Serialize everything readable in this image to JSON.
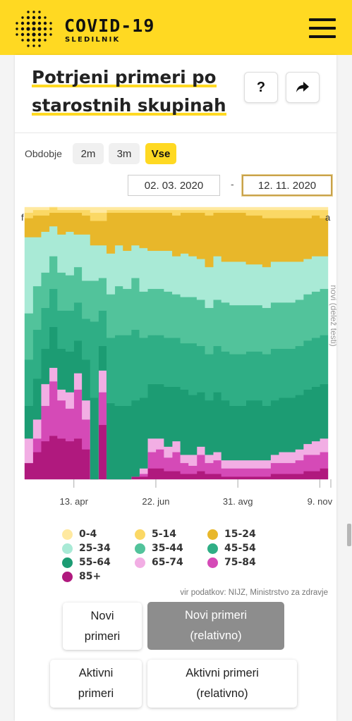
{
  "header": {
    "app_title": "COVID-19",
    "app_subtitle": "SLEDILNIK",
    "logo_icon": "dot-matrix-logo-icon",
    "menu_icon": "hamburger-menu-icon"
  },
  "card": {
    "title_line1": "Potrjeni primeri po",
    "title_line2": "starostnih skupinah",
    "help_label": "?",
    "share_icon": "share-arrow-icon"
  },
  "period": {
    "label": "Obdobje",
    "options": [
      "2m",
      "3m",
      "Vse"
    ],
    "selected": "Vse"
  },
  "date_range": {
    "from": "02. 03. 2020",
    "separator": "-",
    "to": "12. 11. 2020"
  },
  "chart_data": {
    "type": "area",
    "stacking": "percent",
    "y_axis_title_right": "novi (delež testi)",
    "left_cut_label": "f",
    "right_cut_label": "a",
    "ylim": [
      0,
      100
    ],
    "x_tick_labels": [
      "13. apr",
      "22. jun",
      "31. avg",
      "9. nov"
    ],
    "x_tick_weeks": [
      6,
      16,
      26,
      36
    ],
    "x": [
      "2020-03-02",
      "2020-03-09",
      "2020-03-16",
      "2020-03-23",
      "2020-03-30",
      "2020-04-06",
      "2020-04-13",
      "2020-04-20",
      "2020-04-27",
      "2020-05-04",
      "2020-05-11",
      "2020-05-18",
      "2020-05-25",
      "2020-06-01",
      "2020-06-08",
      "2020-06-15",
      "2020-06-22",
      "2020-06-29",
      "2020-07-06",
      "2020-07-13",
      "2020-07-20",
      "2020-07-27",
      "2020-08-03",
      "2020-08-10",
      "2020-08-17",
      "2020-08-24",
      "2020-08-31",
      "2020-09-07",
      "2020-09-14",
      "2020-09-21",
      "2020-09-28",
      "2020-10-05",
      "2020-10-12",
      "2020-10-19",
      "2020-10-26",
      "2020-11-02",
      "2020-11-09"
    ],
    "series": [
      {
        "name": "85+",
        "color": "#b0197e",
        "values": [
          6,
          10,
          14,
          16,
          15,
          14,
          15,
          11,
          0,
          20,
          0,
          0,
          0,
          1,
          1,
          4,
          4,
          3,
          3,
          2,
          2,
          3,
          2,
          2,
          1,
          1,
          1,
          1,
          1,
          1,
          2,
          2,
          2,
          2,
          3,
          3,
          4
        ]
      },
      {
        "name": "75-84",
        "color": "#d54ab7",
        "values": [
          0,
          5,
          13,
          20,
          14,
          12,
          18,
          11,
          0,
          12,
          0,
          0,
          0,
          0,
          1,
          6,
          7,
          5,
          7,
          4,
          3,
          6,
          4,
          5,
          3,
          3,
          3,
          3,
          3,
          3,
          4,
          4,
          4,
          5,
          6,
          6,
          6
        ]
      },
      {
        "name": "65-74",
        "color": "#f2aee4",
        "values": [
          9,
          7,
          8,
          5,
          4,
          6,
          6,
          7,
          0,
          8,
          0,
          0,
          0,
          0,
          2,
          5,
          4,
          4,
          4,
          3,
          4,
          3,
          3,
          3,
          3,
          3,
          3,
          3,
          3,
          3,
          3,
          4,
          4,
          4,
          4,
          5,
          5
        ]
      },
      {
        "name": "55-64",
        "color": "#1c9c73",
        "values": [
          12,
          15,
          13,
          15,
          15,
          15,
          12,
          15,
          30,
          9,
          28,
          27,
          27,
          28,
          26,
          20,
          20,
          22,
          20,
          24,
          22,
          20,
          20,
          22,
          22,
          20,
          20,
          22,
          22,
          20,
          20,
          20,
          20,
          20,
          20,
          20,
          20
        ]
      },
      {
        "name": "45-54",
        "color": "#2fae85",
        "values": [
          17,
          18,
          15,
          14,
          14,
          15,
          14,
          15,
          28,
          13,
          24,
          26,
          26,
          26,
          22,
          18,
          18,
          18,
          18,
          17,
          19,
          17,
          17,
          17,
          18,
          19,
          19,
          18,
          18,
          19,
          19,
          18,
          18,
          18,
          18,
          18,
          18
        ]
      },
      {
        "name": "35-44",
        "color": "#52c39b",
        "values": [
          17,
          16,
          13,
          12,
          14,
          13,
          13,
          14,
          15,
          12,
          16,
          18,
          17,
          19,
          17,
          17,
          17,
          17,
          16,
          17,
          17,
          17,
          17,
          17,
          18,
          18,
          18,
          17,
          17,
          17,
          17,
          17,
          17,
          17,
          17,
          17,
          17
        ]
      },
      {
        "name": "25-34",
        "color": "#a9ead6",
        "values": [
          28,
          18,
          15,
          11,
          14,
          16,
          12,
          17,
          13,
          12,
          15,
          15,
          14,
          12,
          16,
          14,
          14,
          15,
          14,
          16,
          15,
          15,
          15,
          16,
          15,
          16,
          16,
          15,
          15,
          15,
          15,
          15,
          15,
          14,
          13,
          13,
          12
        ]
      },
      {
        "name": "15-24",
        "color": "#e8b72a",
        "values": [
          7,
          8,
          6,
          5,
          8,
          7,
          8,
          7,
          9,
          9,
          15,
          12,
          14,
          12,
          13,
          14,
          14,
          14,
          15,
          15,
          16,
          17,
          19,
          16,
          18,
          18,
          18,
          18,
          18,
          18,
          16,
          16,
          16,
          16,
          15,
          15,
          14
        ]
      },
      {
        "name": "5-14",
        "color": "#fbd865",
        "values": [
          2,
          2,
          2,
          2,
          1,
          1,
          1,
          2,
          3,
          3,
          1,
          1,
          1,
          1,
          1,
          1,
          1,
          1,
          2,
          1,
          1,
          1,
          2,
          1,
          1,
          1,
          1,
          2,
          2,
          3,
          3,
          3,
          3,
          3,
          3,
          2,
          3
        ]
      },
      {
        "name": "0-4",
        "color": "#ffe9a0",
        "values": [
          2,
          1,
          1,
          0,
          1,
          1,
          1,
          1,
          2,
          2,
          1,
          1,
          1,
          1,
          1,
          1,
          1,
          1,
          1,
          1,
          1,
          1,
          1,
          1,
          1,
          1,
          1,
          1,
          1,
          1,
          1,
          1,
          1,
          1,
          1,
          1,
          1
        ]
      }
    ]
  },
  "legend": [
    {
      "label": "0-4",
      "color": "#ffe9a0"
    },
    {
      "label": "5-14",
      "color": "#fbd865"
    },
    {
      "label": "15-24",
      "color": "#e8b72a"
    },
    {
      "label": "25-34",
      "color": "#a9ead6"
    },
    {
      "label": "35-44",
      "color": "#52c39b"
    },
    {
      "label": "45-54",
      "color": "#2fae85"
    },
    {
      "label": "55-64",
      "color": "#1c9c73"
    },
    {
      "label": "65-74",
      "color": "#f2aee4"
    },
    {
      "label": "75-84",
      "color": "#d54ab7"
    },
    {
      "label": "85+",
      "color": "#b0197e"
    }
  ],
  "source_text": "vir podatkov: NIJZ, Ministrstvo za zdravje",
  "view_buttons": [
    {
      "line1": "Novi",
      "line2": "primeri",
      "selected": false
    },
    {
      "line1": "Novi primeri",
      "line2": "(relativno)",
      "selected": true
    },
    {
      "line1": "Aktivni",
      "line2": "primeri",
      "selected": false
    },
    {
      "line1": "Aktivni primeri",
      "line2": "(relativno)",
      "selected": false
    }
  ]
}
